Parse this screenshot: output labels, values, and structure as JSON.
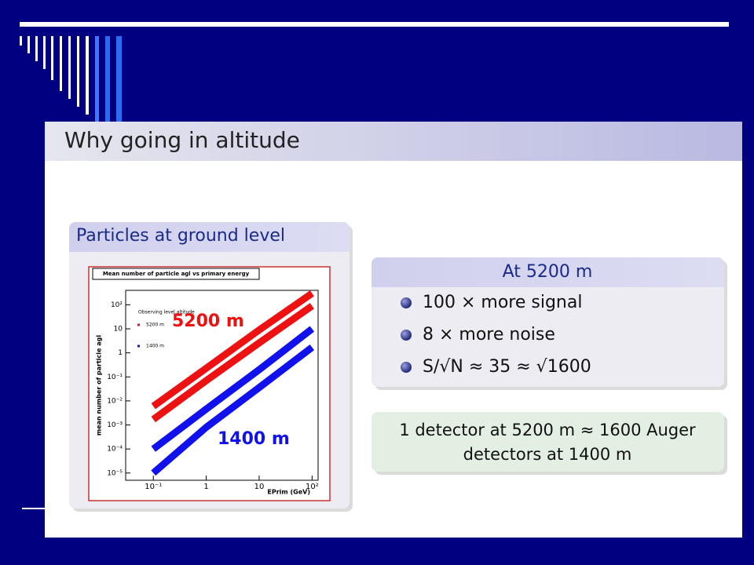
{
  "slide": {
    "title": "Why going in altitude",
    "left_block": {
      "title": "Particles at ground level"
    },
    "right_block": {
      "title": "At 5200 m",
      "items": [
        "100 × more signal",
        "8 × more noise",
        "S/√N ≈ 35 ≈ √1600"
      ]
    },
    "note_block": {
      "lines": [
        "1 detector at 5200 m ≈ 1600 Auger",
        "detectors at 1400 m"
      ]
    }
  },
  "chart_data": {
    "type": "line",
    "title": "Mean number of particle agl vs primary energy",
    "x_label": "EPrim (GeV)",
    "y_label": "mean number of particle agl",
    "legend_title": "Observing level altitude",
    "log_scale": true,
    "x": [
      0.1,
      1,
      10,
      100
    ],
    "series": [
      {
        "name": "5200 m",
        "color": "#ee1111",
        "values": [
          0.006,
          0.23,
          9,
          300
        ],
        "lower_values": [
          0.0017,
          0.07,
          2.6,
          90
        ]
      },
      {
        "name": "1400 m",
        "color": "#1111ee",
        "values": [
          0.0001,
          0.0046,
          0.2,
          10
        ],
        "lower_values": [
          1e-05,
          0.0008,
          0.036,
          1.7
        ]
      }
    ],
    "annotations": [
      "5200 m",
      "1400 m"
    ],
    "xlim": [
      0.03,
      130
    ],
    "ylim": [
      5e-06,
      400
    ],
    "xticks": [
      {
        "value": 0.1,
        "label": "10⁻¹"
      },
      1,
      10,
      {
        "value": 100,
        "label": "10²"
      }
    ],
    "yticks": [
      {
        "value": 100,
        "label": "10²"
      },
      10,
      1,
      {
        "value": 0.1,
        "label": "10⁻¹"
      },
      {
        "value": 0.01,
        "label": "10⁻²"
      },
      {
        "value": 0.001,
        "label": "10⁻³"
      },
      {
        "value": 0.0001,
        "label": "10⁻⁴"
      },
      {
        "value": 1e-05,
        "label": "10⁻⁵"
      }
    ]
  }
}
